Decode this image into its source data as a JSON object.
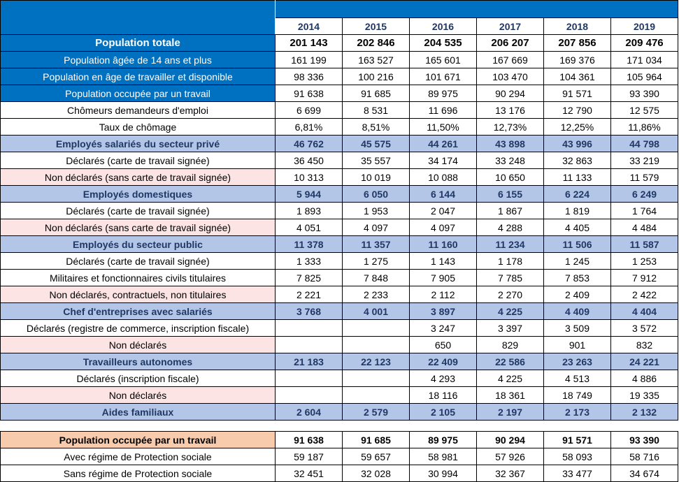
{
  "years": [
    "2014",
    "2015",
    "2016",
    "2017",
    "2018",
    "2019"
  ],
  "rows": [
    {
      "label": "Population totale",
      "values": [
        "201 143",
        "202 846",
        "204 535",
        "206 207",
        "207 856",
        "209 476"
      ]
    },
    {
      "label": "Population âgée de 14 ans et plus",
      "values": [
        "161 199",
        "163 527",
        "165 601",
        "167 669",
        "169 376",
        "171 034"
      ]
    },
    {
      "label": "Population en âge de travailler et disponible",
      "values": [
        "98 336",
        "100 216",
        "101 671",
        "103 470",
        "104 361",
        "105 964"
      ]
    },
    {
      "label": "Population occupée par un travail",
      "values": [
        "91 638",
        "91 685",
        "89 975",
        "90 294",
        "91 571",
        "93 390"
      ]
    },
    {
      "label": "Chômeurs demandeurs d'emploi",
      "values": [
        "6 699",
        "8 531",
        "11 696",
        "13 176",
        "12 790",
        "12 575"
      ]
    },
    {
      "label": "Taux de chômage",
      "values": [
        "6,81%",
        "8,51%",
        "11,50%",
        "12,73%",
        "12,25%",
        "11,86%"
      ]
    },
    {
      "label": "Employés salariés du secteur privé",
      "values": [
        "46 762",
        "45 575",
        "44 261",
        "43 898",
        "43 996",
        "44 798"
      ]
    },
    {
      "label": "Déclarés (carte de travail signée)",
      "values": [
        "36 450",
        "35 557",
        "34 174",
        "33 248",
        "32 863",
        "33 219"
      ]
    },
    {
      "label": "Non déclarés (sans carte de travail signée)",
      "values": [
        "10 313",
        "10 019",
        "10 088",
        "10 650",
        "11 133",
        "11 579"
      ]
    },
    {
      "label": "Employés domestiques",
      "values": [
        "5 944",
        "6 050",
        "6 144",
        "6 155",
        "6 224",
        "6 249"
      ]
    },
    {
      "label": "Déclarés (carte de travail signée)",
      "values": [
        "1 893",
        "1 953",
        "2 047",
        "1 867",
        "1 819",
        "1 764"
      ]
    },
    {
      "label": "Non déclarés (sans carte de travail signée)",
      "values": [
        "4 051",
        "4 097",
        "4 097",
        "4 288",
        "4 405",
        "4 484"
      ]
    },
    {
      "label": "Employés du secteur public",
      "values": [
        "11 378",
        "11 357",
        "11 160",
        "11 234",
        "11 506",
        "11 587"
      ]
    },
    {
      "label": "Déclarés (carte de travail signée)",
      "values": [
        "1 333",
        "1 275",
        "1 143",
        "1 178",
        "1 245",
        "1 253"
      ]
    },
    {
      "label": "Militaires et fonctionnaires civils titulaires",
      "values": [
        "7 825",
        "7 848",
        "7 905",
        "7 785",
        "7 853",
        "7 912"
      ]
    },
    {
      "label": "Non déclarés, contractuels, non titulaires",
      "values": [
        "2 221",
        "2 233",
        "2 112",
        "2 270",
        "2 409",
        "2 422"
      ]
    },
    {
      "label": "Chef d'entreprises avec salariés",
      "values": [
        "3 768",
        "4 001",
        "3 897",
        "4 225",
        "4 409",
        "4 404"
      ]
    },
    {
      "label": "Déclarés (registre de commerce, inscription fiscale)",
      "values": [
        "",
        "",
        "3 247",
        "3 397",
        "3 509",
        "3 572"
      ]
    },
    {
      "label": "Non déclarés",
      "values": [
        "",
        "",
        "650",
        "829",
        "901",
        "832"
      ]
    },
    {
      "label": "Travailleurs autonomes",
      "values": [
        "21 183",
        "22 123",
        "22 409",
        "22 586",
        "23 263",
        "24 221"
      ]
    },
    {
      "label": "Déclarés (inscription fiscale)",
      "values": [
        "",
        "",
        "4 293",
        "4 225",
        "4 513",
        "4 886"
      ]
    },
    {
      "label": "Non déclarés",
      "values": [
        "",
        "",
        "18 116",
        "18 361",
        "18 749",
        "19 335"
      ]
    },
    {
      "label": "Aides familiaux",
      "values": [
        "2 604",
        "2 579",
        "2 105",
        "2 197",
        "2 173",
        "2 132"
      ]
    }
  ],
  "summary": [
    {
      "label": "Population occupée par un travail",
      "values": [
        "91 638",
        "91 685",
        "89 975",
        "90 294",
        "91 571",
        "93 390"
      ]
    },
    {
      "label": "Avec régime de Protection sociale",
      "values": [
        "59 187",
        "59 657",
        "58 981",
        "57 926",
        "58 093",
        "58 716"
      ]
    },
    {
      "label": "Sans régime de Protection sociale",
      "values": [
        "32 451",
        "32 028",
        "30 994",
        "32 367",
        "33 477",
        "34 674"
      ]
    }
  ]
}
